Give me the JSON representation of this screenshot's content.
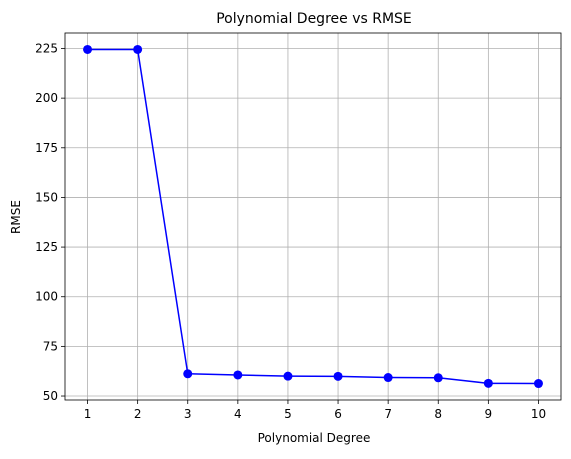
{
  "chart_data": {
    "type": "line",
    "title": "Polynomial Degree vs RMSE",
    "xlabel": "Polynomial Degree",
    "ylabel": "RMSE",
    "x": [
      1,
      2,
      3,
      4,
      5,
      6,
      7,
      8,
      9,
      10
    ],
    "y": [
      224.5,
      224.5,
      61.2,
      60.6,
      60.0,
      59.9,
      59.3,
      59.2,
      56.4,
      56.3
    ],
    "xticks": [
      "1",
      "2",
      "3",
      "4",
      "5",
      "6",
      "7",
      "8",
      "9",
      "10"
    ],
    "yticks": [
      50,
      75,
      100,
      125,
      150,
      175,
      200,
      225
    ],
    "ytick_labels": [
      "50",
      "75",
      "100",
      "125",
      "150",
      "175",
      "200",
      "225"
    ],
    "xlim": [
      0.55,
      10.45
    ],
    "ylim": [
      48,
      232.8
    ],
    "grid": true,
    "marker": "circle",
    "color": "#0000ff",
    "grid_color": "#b0b0b0"
  }
}
